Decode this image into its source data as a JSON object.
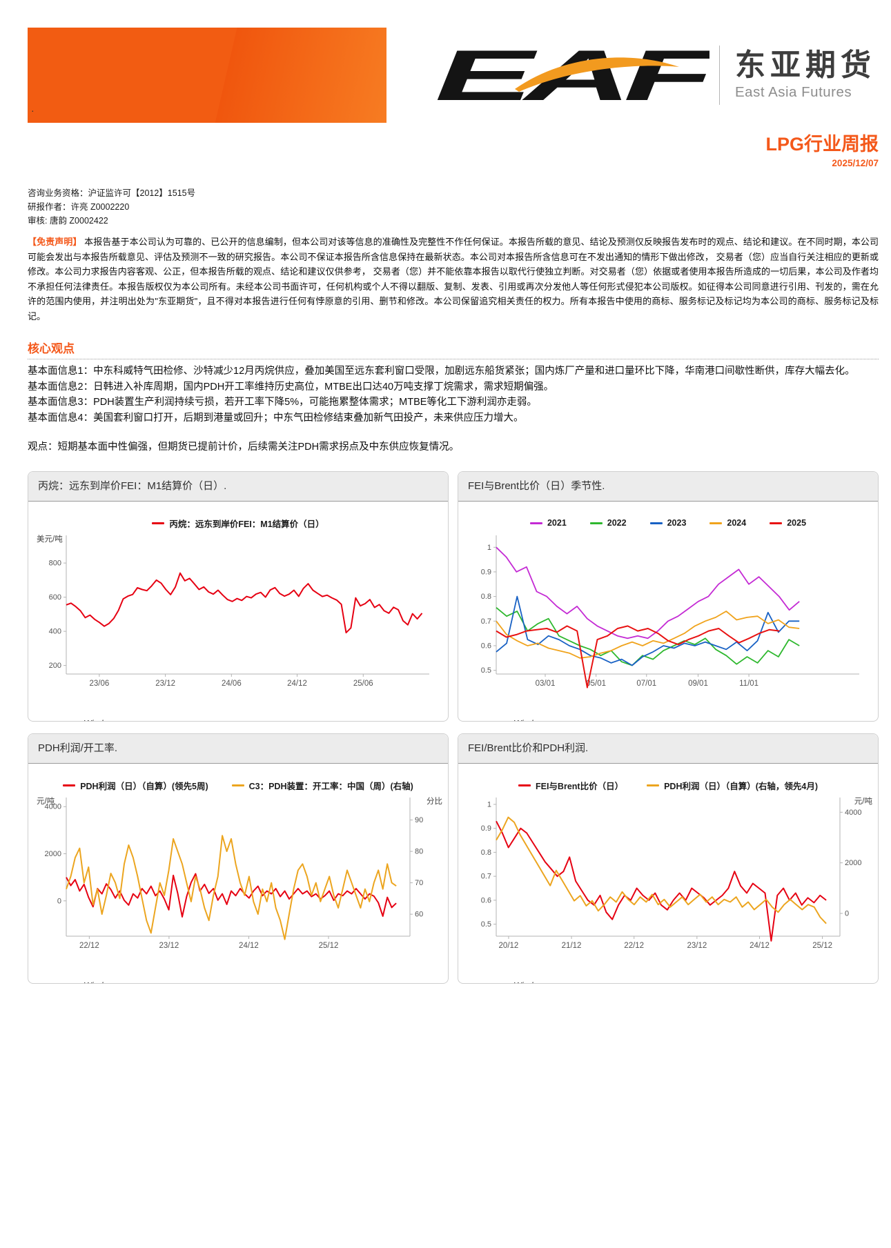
{
  "brand": {
    "logo_text": "EAF",
    "company_cn": "东亚期货",
    "company_en": "East Asia Futures",
    "accent_color": "#f4581a"
  },
  "report": {
    "title": "LPG行业周报",
    "date": "2025/12/07",
    "stray_dot": "·",
    "qualification": "咨询业务资格：沪证监许可【2012】1515号",
    "author": "研报作者：许亮 Z0002220",
    "reviewer": "审核: 唐韵 Z0002422"
  },
  "disclaimer": {
    "label": "【免责声明】",
    "text": " 本报告基于本公司认为可靠的、已公开的信息编制，但本公司对该等信息的准确性及完整性不作任何保证。本报告所载的意见、结论及预测仅反映报告发布时的观点、结论和建议。在不同时期，本公司可能会发出与本报告所载意见、评估及预测不一致的研究报告。本公司不保证本报告所含信息保持在最新状态。本公司对本报告所含信息可在不发出通知的情形下做出修改， 交易者（您）应当自行关注相应的更新或修改。本公司力求报告内容客观、公正，但本报告所载的观点、结论和建议仅供参考， 交易者（您）并不能依靠本报告以取代行使独立判断。对交易者（您）依据或者使用本报告所造成的一切后果，本公司及作者均不承担任何法律责任。本报告版权仅为本公司所有。未经本公司书面许可，任何机构或个人不得以翻版、复制、发表、引用或再次分发他人等任何形式侵犯本公司版权。如征得本公司同意进行引用、刊发的，需在允许的范围内使用，并注明出处为\"东亚期货\"，且不得对本报告进行任何有悖原意的引用、删节和修改。本公司保留追究相关责任的权力。所有本报告中使用的商标、服务标记及标记均为本公司的商标、服务标记及标记。"
  },
  "core": {
    "heading": "核心观点",
    "items": [
      "基本面信息1：中东科威特气田检修、沙特减少12月丙烷供应，叠加美国至远东套利窗口受限，加剧远东船货紧张；国内炼厂产量和进口量环比下降，华南港口间歇性断供，库存大幅去化。",
      "基本面信息2：日韩进入补库周期，国内PDH开工率维持历史高位，MTBE出口达40万吨支撑丁烷需求，需求短期偏强。",
      "基本面信息3：PDH装置生产利润持续亏损，若开工率下降5%，可能拖累整体需求；MTBE等化工下游利润亦走弱。",
      "基本面信息4：美国套利窗口打开，后期到港量或回升；中东气田检修结束叠加新气田投产，未来供应压力增大。"
    ],
    "viewpoint": "观点：短期基本面中性偏强，但期货已提前计价，后续需关注PDH需求拐点及中东供应恢复情况。"
  },
  "source_label": "source：",
  "source_value": "Wind",
  "chart_data": [
    {
      "type": "line",
      "title": "丙烷：远东到岸价FEI：M1结算价（日）.",
      "left_axis": {
        "unit": "美元/吨",
        "min": 150,
        "max": 950,
        "ticks": [
          800,
          600,
          400,
          200
        ]
      },
      "x_ticks": {
        "labels": [
          "23/06",
          "23/12",
          "24/06",
          "24/12",
          "25/06"
        ],
        "fracs": [
          0.091,
          0.273,
          0.455,
          0.636,
          0.818
        ]
      },
      "series": [
        {
          "name": "丙烷：远东到岸价FEI：M1结算价（日）",
          "color": "#e60012",
          "axis": "left",
          "width": 2,
          "values": [
            555,
            565,
            545,
            520,
            480,
            495,
            470,
            452,
            430,
            446,
            475,
            522,
            590,
            606,
            616,
            655,
            645,
            638,
            666,
            700,
            682,
            645,
            615,
            660,
            741,
            696,
            710,
            678,
            645,
            660,
            631,
            618,
            641,
            612,
            586,
            575,
            592,
            581,
            604,
            596,
            618,
            628,
            600,
            642,
            656,
            622,
            606,
            618,
            641,
            605,
            652,
            679,
            641,
            622,
            604,
            612,
            596,
            583,
            558,
            392,
            420,
            596,
            549,
            562,
            586,
            540,
            557,
            521,
            506,
            541,
            526,
            462,
            438,
            503,
            473,
            506
          ]
        }
      ],
      "source": "Wind"
    },
    {
      "type": "line",
      "title": "FEI与Brent比价（日）季节性.",
      "left_axis": {
        "min": 0.485,
        "max": 1.04,
        "ticks": [
          1,
          0.9,
          0.8,
          0.7,
          0.6,
          0.5
        ]
      },
      "x_ticks": {
        "labels": [
          "03/01",
          "05/01",
          "07/01",
          "09/01",
          "11/01"
        ],
        "fracs": [
          0.135,
          0.275,
          0.414,
          0.556,
          0.696
        ]
      },
      "series": [
        {
          "name": "2021",
          "color": "#c42ad4",
          "axis": "left",
          "span": [
            0,
            0.835
          ],
          "values": [
            1.0,
            0.96,
            0.9,
            0.92,
            0.82,
            0.8,
            0.76,
            0.73,
            0.76,
            0.71,
            0.68,
            0.66,
            0.64,
            0.63,
            0.64,
            0.63,
            0.66,
            0.7,
            0.72,
            0.75,
            0.78,
            0.8,
            0.85,
            0.88,
            0.91,
            0.85,
            0.88,
            0.84,
            0.8,
            0.745,
            0.78
          ]
        },
        {
          "name": "2022",
          "color": "#2eb82e",
          "axis": "left",
          "span": [
            0,
            0.835
          ],
          "values": [
            0.755,
            0.72,
            0.74,
            0.66,
            0.69,
            0.71,
            0.64,
            0.62,
            0.6,
            0.585,
            0.56,
            0.58,
            0.535,
            0.52,
            0.56,
            0.545,
            0.58,
            0.6,
            0.62,
            0.605,
            0.63,
            0.585,
            0.56,
            0.525,
            0.555,
            0.53,
            0.58,
            0.555,
            0.625,
            0.6
          ]
        },
        {
          "name": "2023",
          "color": "#1861c4",
          "axis": "left",
          "span": [
            0,
            0.835
          ],
          "values": [
            0.575,
            0.61,
            0.8,
            0.625,
            0.605,
            0.64,
            0.625,
            0.6,
            0.585,
            0.56,
            0.55,
            0.53,
            0.545,
            0.52,
            0.555,
            0.575,
            0.6,
            0.59,
            0.61,
            0.6,
            0.615,
            0.6,
            0.585,
            0.615,
            0.58,
            0.62,
            0.735,
            0.655,
            0.7,
            0.7
          ]
        },
        {
          "name": "2024",
          "color": "#f0a31c",
          "axis": "left",
          "span": [
            0,
            0.835
          ],
          "values": [
            0.7,
            0.645,
            0.62,
            0.6,
            0.61,
            0.59,
            0.58,
            0.57,
            0.55,
            0.555,
            0.57,
            0.58,
            0.6,
            0.615,
            0.6,
            0.62,
            0.61,
            0.63,
            0.65,
            0.68,
            0.7,
            0.715,
            0.74,
            0.705,
            0.715,
            0.72,
            0.69,
            0.705,
            0.675,
            0.67
          ]
        },
        {
          "name": "2025",
          "color": "#e81111",
          "axis": "left",
          "span": [
            0,
            0.78
          ],
          "width": 2,
          "values": [
            0.66,
            0.635,
            0.645,
            0.66,
            0.665,
            0.67,
            0.655,
            0.68,
            0.66,
            0.43,
            0.625,
            0.64,
            0.67,
            0.68,
            0.66,
            0.67,
            0.65,
            0.62,
            0.605,
            0.625,
            0.64,
            0.66,
            0.67,
            0.64,
            0.612,
            0.63,
            0.65,
            0.665,
            0.66
          ]
        }
      ],
      "source": "Wind"
    },
    {
      "type": "line",
      "title": "PDH利润/开工率.",
      "left_axis": {
        "unit": "元/吨",
        "min": -1500,
        "max": 4300,
        "ticks": [
          4000,
          2000,
          0
        ]
      },
      "right_axis": {
        "unit": "分比",
        "min": 53,
        "max": 96.5,
        "ticks": [
          90,
          80,
          70,
          60
        ]
      },
      "x_ticks": {
        "labels": [
          "22/12",
          "23/12",
          "24/12",
          "25/12"
        ],
        "fracs": [
          0.067,
          0.299,
          0.531,
          0.763
        ]
      },
      "series": [
        {
          "name": "PDH利润（日）（自算）(领先5周)",
          "color": "#e60012",
          "axis": "left",
          "width": 2,
          "span": [
            0,
            0.96
          ],
          "values": [
            1000,
            650,
            900,
            420,
            700,
            150,
            -250,
            520,
            300,
            720,
            480,
            120,
            420,
            20,
            -180,
            300,
            120,
            520,
            300,
            620,
            220,
            420,
            80,
            -380,
            1080,
            320,
            -680,
            180,
            780,
            1150,
            420,
            700,
            320,
            520,
            30,
            300,
            -150,
            420,
            220,
            520,
            300,
            120,
            420,
            620,
            220,
            420,
            300,
            520,
            180,
            420,
            80,
            300,
            520,
            300,
            420,
            180,
            300,
            80,
            220,
            420,
            20,
            300,
            220,
            420,
            300,
            520,
            300,
            80,
            300,
            200,
            -80,
            -650,
            150,
            -280,
            -100
          ]
        },
        {
          "name": "C3：PDH装置：开工率：中国（周）(右轴)",
          "color": "#eca51f",
          "axis": "right",
          "width": 2,
          "span": [
            0,
            0.96
          ],
          "values": [
            68,
            72,
            78,
            81,
            70,
            75,
            63,
            68,
            60,
            66,
            73,
            70,
            65,
            76,
            82,
            78,
            72,
            65,
            58,
            54,
            62,
            70,
            66,
            74,
            84,
            80,
            76,
            70,
            64,
            72,
            68,
            62,
            58,
            66,
            72,
            85,
            80,
            84,
            76,
            70,
            66,
            72,
            64,
            60,
            68,
            64,
            70,
            62,
            58,
            52,
            60,
            68,
            74,
            76,
            72,
            66,
            70,
            64,
            68,
            72,
            66,
            62,
            68,
            74,
            70,
            66,
            62,
            68,
            64,
            70,
            74,
            68,
            76,
            70,
            69
          ]
        }
      ],
      "source": "Wind"
    },
    {
      "type": "line",
      "title": "FEI/Brent比价和PDH利润.",
      "left_axis": {
        "min": 0.45,
        "max": 1.02,
        "ticks": [
          1,
          0.9,
          0.8,
          0.7,
          0.6,
          0.5
        ]
      },
      "right_axis": {
        "unit": "元/吨",
        "min": -900,
        "max": 4500,
        "ticks": [
          4000,
          2000,
          0
        ]
      },
      "x_ticks": {
        "labels": [
          "20/12",
          "21/12",
          "22/12",
          "23/12",
          "24/12",
          "25/12"
        ],
        "fracs": [
          0.036,
          0.219,
          0.401,
          0.584,
          0.766,
          0.949
        ]
      },
      "series": [
        {
          "name": "FEI与Brent比价（日）",
          "color": "#e60012",
          "axis": "left",
          "width": 2,
          "span": [
            0,
            0.96
          ],
          "values": [
            0.93,
            0.88,
            0.82,
            0.86,
            0.9,
            0.88,
            0.84,
            0.8,
            0.76,
            0.73,
            0.7,
            0.72,
            0.78,
            0.68,
            0.64,
            0.6,
            0.58,
            0.62,
            0.55,
            0.52,
            0.58,
            0.62,
            0.6,
            0.65,
            0.62,
            0.6,
            0.63,
            0.58,
            0.56,
            0.6,
            0.63,
            0.6,
            0.65,
            0.63,
            0.61,
            0.58,
            0.6,
            0.62,
            0.65,
            0.72,
            0.66,
            0.63,
            0.67,
            0.65,
            0.63,
            0.43,
            0.62,
            0.65,
            0.6,
            0.63,
            0.58,
            0.61,
            0.59,
            0.62,
            0.6
          ]
        },
        {
          "name": "PDH利润（日）（自算）(右轴，领先4月)",
          "color": "#eca51f",
          "axis": "right",
          "width": 2,
          "span": [
            0,
            0.96
          ],
          "values": [
            2900,
            3300,
            3800,
            3600,
            3100,
            2700,
            2300,
            1900,
            1500,
            1100,
            1700,
            1300,
            900,
            500,
            700,
            300,
            500,
            100,
            350,
            650,
            450,
            850,
            550,
            350,
            650,
            450,
            750,
            350,
            550,
            250,
            450,
            650,
            350,
            550,
            750,
            450,
            650,
            350,
            550,
            450,
            650,
            250,
            450,
            150,
            350,
            550,
            250,
            50,
            350,
            550,
            350,
            150,
            350,
            250,
            -150,
            -400
          ]
        }
      ],
      "source": "Wind"
    }
  ]
}
